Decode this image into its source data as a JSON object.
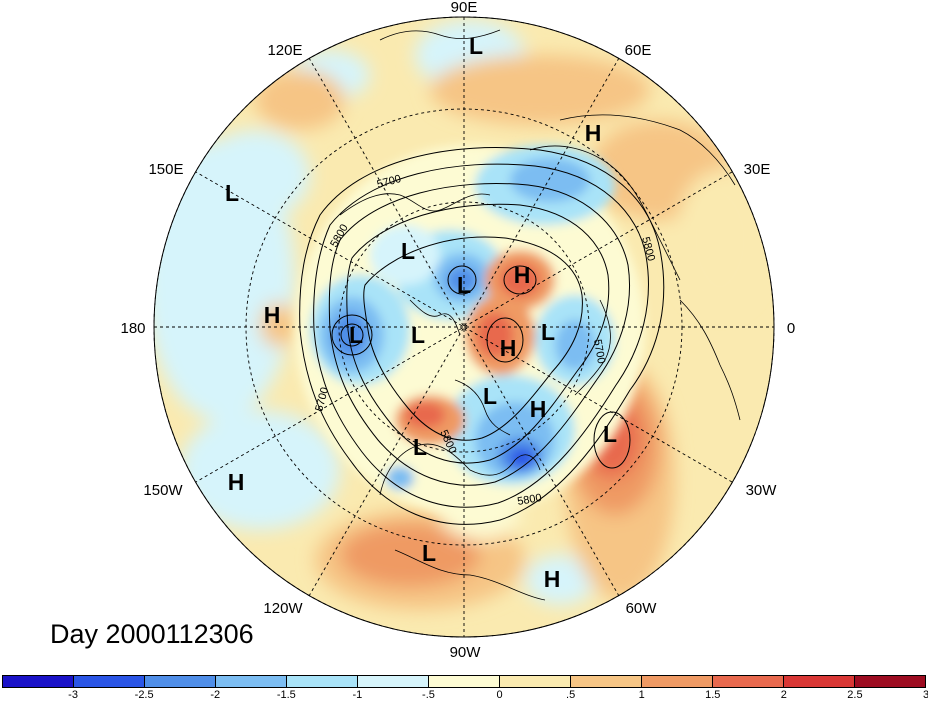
{
  "title": "Day 2000112306",
  "longitude_labels": [
    {
      "id": "lon-90e",
      "text": "90E"
    },
    {
      "id": "lon-60e",
      "text": "60E"
    },
    {
      "id": "lon-30e",
      "text": "30E"
    },
    {
      "id": "lon-0",
      "text": "0"
    },
    {
      "id": "lon-30w",
      "text": "30W"
    },
    {
      "id": "lon-60w",
      "text": "60W"
    },
    {
      "id": "lon-90w",
      "text": "90W"
    },
    {
      "id": "lon-120w",
      "text": "120W"
    },
    {
      "id": "lon-150w",
      "text": "150W"
    },
    {
      "id": "lon-180",
      "text": "180"
    },
    {
      "id": "lon-150e",
      "text": "150E"
    },
    {
      "id": "lon-120e",
      "text": "120E"
    }
  ],
  "pressure_centers": [
    {
      "type": "L"
    },
    {
      "type": "H"
    },
    {
      "type": "L"
    },
    {
      "type": "H"
    },
    {
      "type": "L"
    },
    {
      "type": "L"
    },
    {
      "type": "H"
    },
    {
      "type": "L"
    },
    {
      "type": "L"
    },
    {
      "type": "H"
    },
    {
      "type": "L"
    },
    {
      "type": "L"
    },
    {
      "type": "H"
    },
    {
      "type": "L"
    },
    {
      "type": "H"
    },
    {
      "type": "L"
    },
    {
      "type": "H"
    },
    {
      "type": "L"
    }
  ],
  "contour_labels": [
    "5700",
    "5800",
    "5800",
    "5700",
    "5800",
    "5800",
    "5700"
  ],
  "colorbar": {
    "colors": [
      "#1a12c8",
      "#2a55e6",
      "#4f8ee8",
      "#7cbdf2",
      "#a9e3f8",
      "#d6f4fb",
      "#fdfbd3",
      "#faeab0",
      "#f6c585",
      "#ef9a64",
      "#e8694e",
      "#d93735",
      "#9d0c21"
    ],
    "labels": [
      "-3",
      "-2.5",
      "-2",
      "-1.5",
      "-1",
      "-.5",
      "0",
      ".5",
      "1",
      "1.5",
      "2",
      "2.5",
      "3"
    ]
  }
}
